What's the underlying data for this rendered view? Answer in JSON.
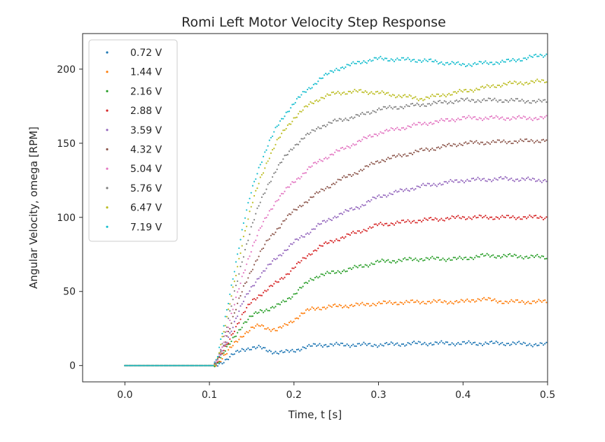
{
  "chart_data": {
    "type": "scatter",
    "title": "Romi Left Motor Velocity Step Response",
    "xlabel": "Time, t [s]",
    "ylabel": "Angular Velocity, omega [RPM]",
    "xlim": [
      -0.05,
      0.5
    ],
    "ylim": [
      -11,
      224
    ],
    "xticks": [
      0.0,
      0.1,
      0.2,
      0.3,
      0.4,
      0.5
    ],
    "xtick_labels": [
      "0.0",
      "0.1",
      "0.2",
      "0.3",
      "0.4",
      "0.5"
    ],
    "yticks": [
      0,
      50,
      100,
      150,
      200
    ],
    "ytick_labels": [
      "0",
      "50",
      "100",
      "150",
      "200"
    ],
    "grid": false,
    "legend_position": "top-left",
    "series": [
      {
        "name": "0.72 V",
        "color": "#1f77b4",
        "x": [
          0.0,
          0.1,
          0.105,
          0.11,
          0.12,
          0.13,
          0.14,
          0.15,
          0.16,
          0.17,
          0.18,
          0.19,
          0.2,
          0.21,
          0.22,
          0.23,
          0.25,
          0.28,
          0.3,
          0.35,
          0.4,
          0.43,
          0.45,
          0.5
        ],
        "y": [
          0,
          0,
          0,
          1,
          4,
          8,
          11,
          12,
          12,
          10,
          9,
          9,
          10,
          12,
          13,
          14,
          14,
          14,
          14,
          15,
          15,
          15,
          15,
          14
        ]
      },
      {
        "name": "1.44 V",
        "color": "#ff7f0e",
        "x": [
          0.0,
          0.1,
          0.105,
          0.11,
          0.12,
          0.13,
          0.14,
          0.15,
          0.16,
          0.17,
          0.18,
          0.19,
          0.2,
          0.21,
          0.22,
          0.23,
          0.25,
          0.28,
          0.3,
          0.35,
          0.4,
          0.42,
          0.45,
          0.5
        ],
        "y": [
          0,
          0,
          0,
          2,
          8,
          15,
          21,
          25,
          27,
          25,
          24,
          27,
          31,
          35,
          38,
          39,
          40,
          41,
          42,
          43,
          43,
          45,
          43,
          43
        ]
      },
      {
        "name": "2.16 V",
        "color": "#2ca02c",
        "x": [
          0.0,
          0.1,
          0.105,
          0.11,
          0.12,
          0.13,
          0.14,
          0.15,
          0.16,
          0.17,
          0.18,
          0.19,
          0.2,
          0.21,
          0.22,
          0.23,
          0.25,
          0.28,
          0.3,
          0.35,
          0.4,
          0.42,
          0.45,
          0.5
        ],
        "y": [
          0,
          0,
          0,
          2,
          11,
          20,
          28,
          33,
          37,
          38,
          40,
          44,
          48,
          53,
          58,
          61,
          63,
          67,
          70,
          72,
          72,
          74,
          74,
          73
        ]
      },
      {
        "name": "2.88 V",
        "color": "#d62728",
        "x": [
          0.0,
          0.1,
          0.105,
          0.11,
          0.12,
          0.13,
          0.14,
          0.15,
          0.16,
          0.17,
          0.18,
          0.19,
          0.2,
          0.21,
          0.22,
          0.23,
          0.25,
          0.28,
          0.3,
          0.35,
          0.4,
          0.45,
          0.5
        ],
        "y": [
          0,
          0,
          0,
          3,
          13,
          25,
          35,
          43,
          48,
          52,
          56,
          61,
          66,
          71,
          76,
          80,
          85,
          91,
          95,
          98,
          100,
          100,
          100
        ]
      },
      {
        "name": "3.59 V",
        "color": "#9467bd",
        "x": [
          0.0,
          0.1,
          0.105,
          0.11,
          0.12,
          0.13,
          0.14,
          0.15,
          0.16,
          0.17,
          0.18,
          0.19,
          0.2,
          0.21,
          0.22,
          0.23,
          0.25,
          0.28,
          0.3,
          0.35,
          0.4,
          0.45,
          0.5
        ],
        "y": [
          0,
          0,
          0,
          3,
          16,
          30,
          43,
          53,
          61,
          67,
          73,
          78,
          83,
          87,
          91,
          95,
          101,
          108,
          114,
          121,
          125,
          126,
          125
        ]
      },
      {
        "name": "4.32 V",
        "color": "#8c564b",
        "x": [
          0.0,
          0.1,
          0.105,
          0.11,
          0.12,
          0.13,
          0.14,
          0.15,
          0.16,
          0.17,
          0.18,
          0.19,
          0.2,
          0.21,
          0.22,
          0.23,
          0.25,
          0.28,
          0.3,
          0.35,
          0.4,
          0.45,
          0.5
        ],
        "y": [
          0,
          0,
          0,
          4,
          19,
          36,
          52,
          65,
          76,
          85,
          92,
          99,
          104,
          109,
          113,
          117,
          124,
          132,
          138,
          145,
          150,
          151,
          152
        ]
      },
      {
        "name": "5.04 V",
        "color": "#e377c2",
        "x": [
          0.0,
          0.1,
          0.105,
          0.11,
          0.12,
          0.13,
          0.14,
          0.15,
          0.16,
          0.17,
          0.18,
          0.19,
          0.2,
          0.21,
          0.22,
          0.23,
          0.25,
          0.28,
          0.3,
          0.35,
          0.4,
          0.45,
          0.5
        ],
        "y": [
          0,
          0,
          0,
          5,
          22,
          42,
          62,
          79,
          92,
          103,
          112,
          118,
          124,
          129,
          134,
          138,
          144,
          152,
          157,
          163,
          167,
          167,
          167
        ]
      },
      {
        "name": "5.76 V",
        "color": "#7f7f7f",
        "x": [
          0.0,
          0.1,
          0.105,
          0.11,
          0.12,
          0.13,
          0.14,
          0.15,
          0.16,
          0.17,
          0.18,
          0.19,
          0.2,
          0.21,
          0.22,
          0.23,
          0.25,
          0.28,
          0.3,
          0.35,
          0.4,
          0.45,
          0.5
        ],
        "y": [
          0,
          0,
          0,
          5,
          25,
          50,
          74,
          94,
          110,
          123,
          133,
          141,
          148,
          153,
          157,
          161,
          165,
          169,
          173,
          176,
          179,
          179,
          178
        ]
      },
      {
        "name": "6.47 V",
        "color": "#bcbd22",
        "x": [
          0.0,
          0.1,
          0.105,
          0.11,
          0.12,
          0.13,
          0.14,
          0.15,
          0.16,
          0.17,
          0.18,
          0.19,
          0.2,
          0.21,
          0.22,
          0.23,
          0.25,
          0.28,
          0.3,
          0.35,
          0.4,
          0.45,
          0.5
        ],
        "y": [
          0,
          0,
          0,
          6,
          30,
          58,
          86,
          108,
          126,
          140,
          151,
          160,
          167,
          172,
          177,
          180,
          184,
          185,
          184,
          180,
          185,
          190,
          192
        ]
      },
      {
        "name": "7.19 V",
        "color": "#17becf",
        "x": [
          0.0,
          0.1,
          0.105,
          0.11,
          0.12,
          0.13,
          0.14,
          0.15,
          0.16,
          0.17,
          0.18,
          0.19,
          0.2,
          0.21,
          0.22,
          0.23,
          0.25,
          0.28,
          0.3,
          0.35,
          0.4,
          0.45,
          0.5
        ],
        "y": [
          0,
          0,
          0,
          7,
          35,
          66,
          95,
          118,
          136,
          150,
          161,
          170,
          177,
          183,
          188,
          193,
          200,
          205,
          207,
          206,
          203,
          205,
          210
        ]
      }
    ]
  }
}
